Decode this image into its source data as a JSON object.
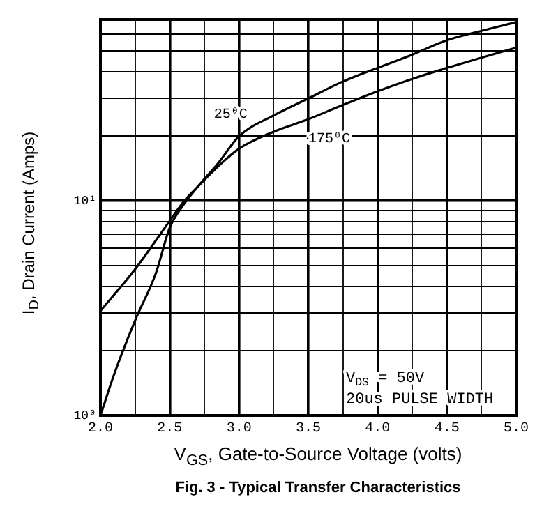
{
  "chart_data": {
    "type": "line",
    "title": "Fig. 3 - Typical Transfer Characteristics",
    "xlabel": "V$_{GS}$, Gate-to-Source Voltage (volts)",
    "ylabel": "I$_{D}$, Drain Current (Amps)",
    "log": "y",
    "grid": true,
    "legend": false,
    "marker": "none",
    "line_style": "solid",
    "xlim": [
      2.0,
      5.0
    ],
    "ylim": [
      1,
      70
    ],
    "xticks": [
      {
        "value": 2.0,
        "label": "2.0"
      },
      {
        "value": 2.25,
        "label": null
      },
      {
        "value": 2.5,
        "label": "2.5"
      },
      {
        "value": 2.75,
        "label": null
      },
      {
        "value": 3.0,
        "label": "3.0"
      },
      {
        "value": 3.25,
        "label": null
      },
      {
        "value": 3.5,
        "label": "3.5"
      },
      {
        "value": 3.75,
        "label": null
      },
      {
        "value": 4.0,
        "label": "4.0"
      },
      {
        "value": 4.25,
        "label": null
      },
      {
        "value": 4.5,
        "label": "4.5"
      },
      {
        "value": 4.75,
        "label": null
      },
      {
        "value": 5.0,
        "label": "5.0"
      }
    ],
    "yticks": [
      {
        "value": 1,
        "label": "10⁰"
      },
      {
        "value": 2,
        "label": null
      },
      {
        "value": 3,
        "label": null
      },
      {
        "value": 4,
        "label": null
      },
      {
        "value": 5,
        "label": null
      },
      {
        "value": 6,
        "label": null
      },
      {
        "value": 7,
        "label": null
      },
      {
        "value": 8,
        "label": null
      },
      {
        "value": 9,
        "label": null
      },
      {
        "value": 10,
        "label": "10¹"
      },
      {
        "value": 20,
        "label": null
      },
      {
        "value": 30,
        "label": null
      },
      {
        "value": 40,
        "label": null
      },
      {
        "value": 50,
        "label": null
      },
      {
        "value": 60,
        "label": null
      }
    ],
    "series": [
      {
        "name": "25⁰C",
        "color": "#000000",
        "x": [
          2.0,
          2.1,
          2.25,
          2.4,
          2.5,
          2.6,
          2.7,
          2.85,
          3.0,
          3.25,
          3.5,
          3.75,
          4.0,
          4.25,
          4.5,
          4.75,
          5.0
        ],
        "values": [
          1.0,
          1.56,
          2.77,
          4.6,
          7.5,
          9.6,
          11.6,
          15,
          20,
          25,
          30,
          36,
          41.6,
          48,
          56,
          62,
          68
        ]
      },
      {
        "name": "175⁰C",
        "color": "#000000",
        "x": [
          2.0,
          2.25,
          2.5,
          2.6,
          2.7,
          2.85,
          3.0,
          3.25,
          3.5,
          3.75,
          4.0,
          4.25,
          4.5,
          4.75,
          5.0
        ],
        "values": [
          3.07,
          4.8,
          8.07,
          9.9,
          11.6,
          14.5,
          17.5,
          21,
          24,
          28,
          32.4,
          37,
          41.6,
          46.5,
          51.7
        ]
      }
    ],
    "annotations": [
      "V$_{DS}$ = 50V",
      "20us PULSE WIDTH"
    ]
  }
}
